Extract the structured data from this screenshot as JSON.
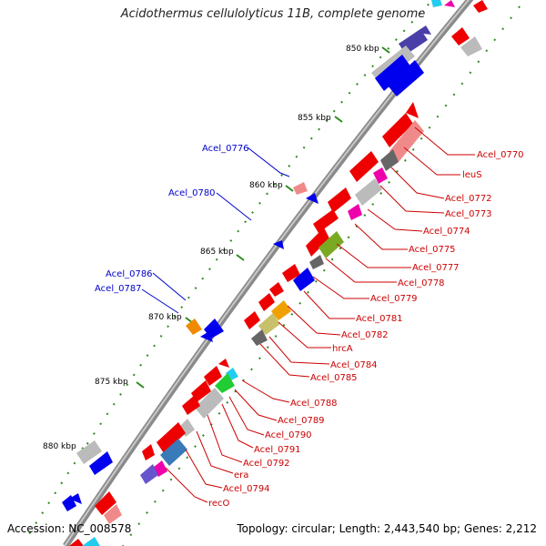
{
  "title": "Acidothermus cellulolyticus 11B, complete genome",
  "accession": "Accession: NC_008578",
  "topology": "Topology: circular; Length: 2,443,540 bp; Genes: 2,212",
  "colors": {
    "backbone": "#7a7a7a",
    "tick": "#2e8b1e",
    "forward_gene": "#ee0000",
    "reverse_gene": "#0000ee",
    "forward_label": "#cc0000",
    "reverse_label": "#0000cc"
  },
  "ruler": [
    {
      "label": "850 kbp"
    },
    {
      "label": "855 kbp"
    },
    {
      "label": "860 kbp"
    },
    {
      "label": "865 kbp"
    },
    {
      "label": "870 kbp"
    },
    {
      "label": "875 kbp"
    },
    {
      "label": "880 kbp"
    }
  ],
  "forward_labels": [
    "Acel_0770",
    "leuS",
    "Acel_0772",
    "Acel_0773",
    "Acel_0774",
    "Acel_0775",
    "Acel_0777",
    "Acel_0778",
    "Acel_0779",
    "Acel_0781",
    "Acel_0782",
    "hrcA",
    "Acel_0784",
    "Acel_0785",
    "Acel_0788",
    "Acel_0789",
    "Acel_0790",
    "Acel_0791",
    "Acel_0792",
    "era",
    "Acel_0794",
    "recO"
  ],
  "reverse_labels": [
    "Acel_0776",
    "Acel_0780",
    "Acel_0786",
    "Acel_0787"
  ]
}
